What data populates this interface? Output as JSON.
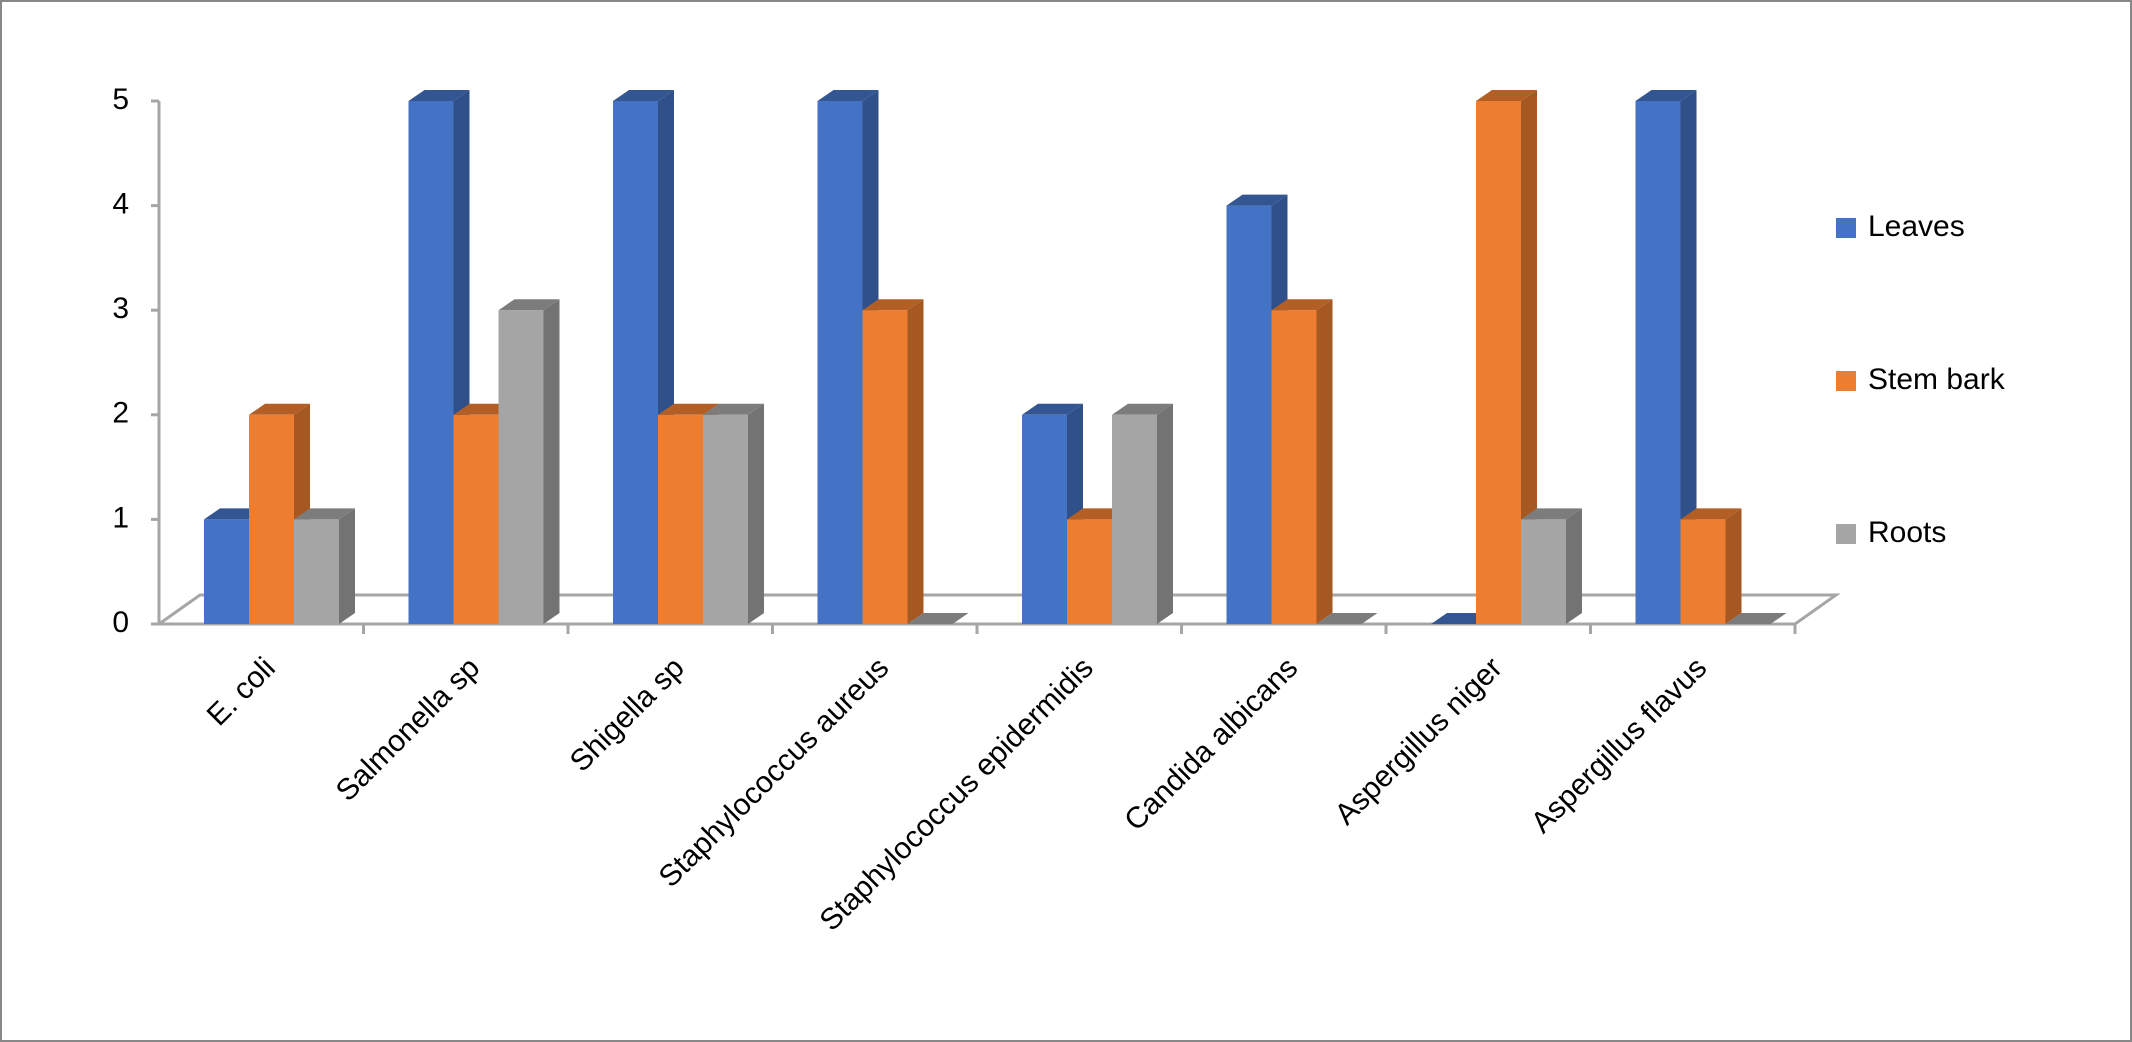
{
  "chart_data": {
    "type": "bar3d",
    "categories": [
      "E. coli",
      "Salmonella sp",
      "Shigella sp",
      "Staphylococcus aureus",
      "Staphylococcus epidermidis",
      "Candida albicans",
      "Aspergillus niger",
      "Aspergillus flavus"
    ],
    "series": [
      {
        "name": "Leaves",
        "color": "#4472c4",
        "values": [
          1,
          5,
          5,
          5,
          2,
          4,
          0,
          5
        ]
      },
      {
        "name": "Stem bark",
        "color": "#ed7d31",
        "values": [
          2,
          2,
          2,
          3,
          1,
          3,
          5,
          1
        ]
      },
      {
        "name": "Roots",
        "color": "#a5a5a5",
        "values": [
          1,
          3,
          2,
          0,
          2,
          0,
          1,
          0
        ]
      }
    ],
    "ylim": [
      0,
      5
    ],
    "yticks": [
      0,
      1,
      2,
      3,
      4,
      5
    ],
    "grid": false,
    "legend_position": "right"
  }
}
